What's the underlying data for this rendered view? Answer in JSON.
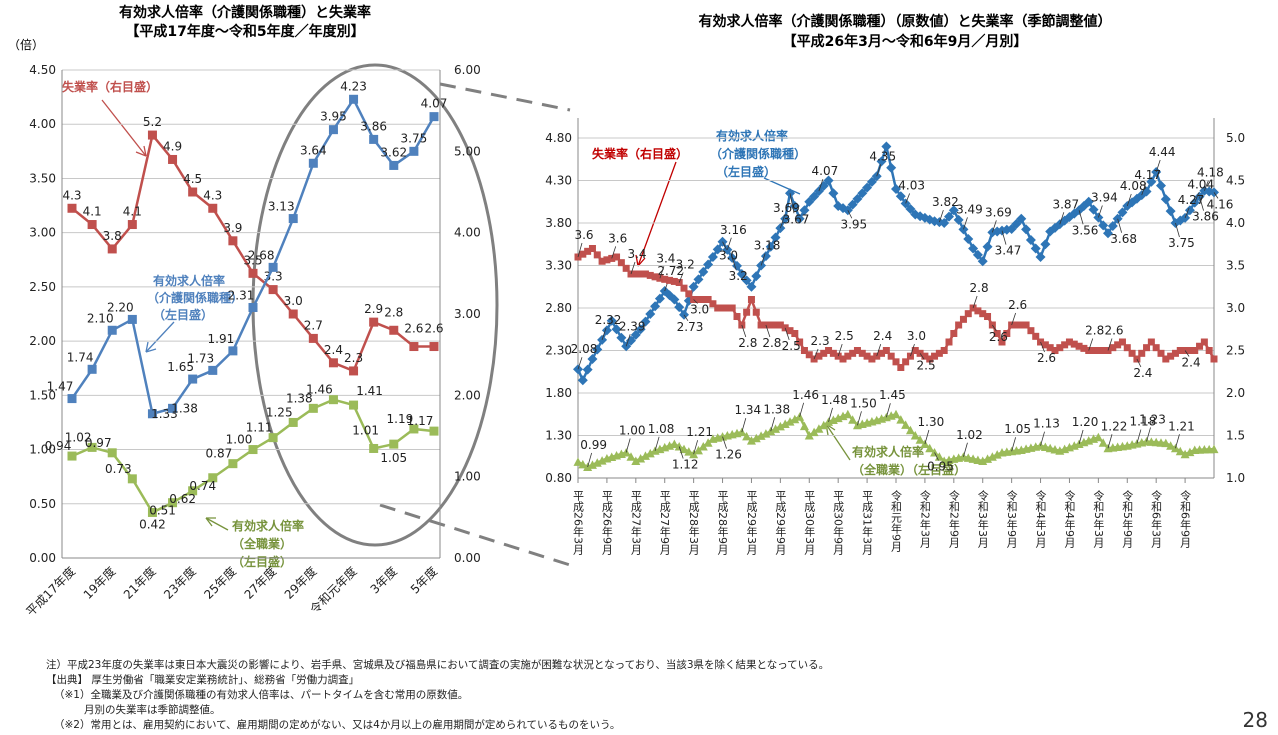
{
  "chart_data": [
    {
      "type": "line",
      "title": "有効求人倍率（介護関係職種）と失業率",
      "subtitle": "【平成17年度～令和5年度／年度別】",
      "left_unit": "（倍）",
      "left_ticks": [
        "0.00",
        "0.50",
        "1.00",
        "1.50",
        "2.00",
        "2.50",
        "3.00",
        "3.50",
        "4.00",
        "4.50"
      ],
      "right_ticks": [
        "0.00",
        "1.00",
        "2.00",
        "3.00",
        "4.00",
        "5.00",
        "6.00"
      ],
      "ylim_left": [
        0,
        4.5
      ],
      "ylim_right": [
        0,
        6
      ],
      "x_tick_labels": [
        "平成17年度",
        "19年度",
        "21年度",
        "23年度",
        "25年度",
        "27年度",
        "29年度",
        "令和元年度",
        "3年度",
        "5年度"
      ],
      "grid": true,
      "series": [
        {
          "name": "失業率（右目盛）",
          "axis": "right",
          "color": "#c0504d",
          "values": [
            4.3,
            4.1,
            3.8,
            4.1,
            5.2,
            4.9,
            4.5,
            4.3,
            3.9,
            3.5,
            3.3,
            3.0,
            2.7,
            2.4,
            2.3,
            2.9,
            2.8,
            2.6,
            2.6
          ],
          "labels": [
            "4.3",
            "4.1",
            "3.8",
            "4.1",
            "5.2",
            "4.9",
            "4.5",
            "4.3",
            "3.9",
            "3.5",
            "3.3",
            "3.0",
            "2.7",
            "2.4",
            "2.3",
            "2.9",
            "2.8",
            "2.6",
            "2.6"
          ]
        },
        {
          "name": "有効求人倍率（介護関係職種）（左目盛）",
          "axis": "left",
          "color": "#4f81bd",
          "values": [
            1.47,
            1.74,
            2.1,
            2.2,
            1.33,
            1.38,
            1.65,
            1.73,
            1.91,
            2.31,
            2.68,
            3.13,
            3.64,
            3.95,
            4.23,
            3.86,
            3.62,
            3.75,
            4.07
          ],
          "labels": [
            "1.47",
            "1.74",
            "2.10",
            "2.20",
            "1.33",
            "1.38",
            "1.65",
            "1.73",
            "1.91",
            "2.31",
            "2.68",
            "3.13",
            "3.64",
            "3.95",
            "4.23",
            "3.86",
            "3.62",
            "3.75",
            "4.07"
          ]
        },
        {
          "name": "有効求人倍率（全職業）（左目盛）",
          "axis": "left",
          "color": "#9bbb59",
          "values": [
            0.94,
            1.02,
            0.97,
            0.73,
            0.42,
            0.51,
            0.62,
            0.74,
            0.87,
            1.0,
            1.11,
            1.25,
            1.38,
            1.46,
            1.41,
            1.01,
            1.05,
            1.19,
            1.17
          ],
          "labels": [
            "0.94",
            "1.02",
            "0.97",
            "0.73",
            "0.42",
            "0.51",
            "0.62",
            "0.74",
            "0.87",
            "1.00",
            "1.11",
            "1.25",
            "1.38",
            "1.46",
            "1.41",
            "1.01",
            "1.05",
            "1.19",
            "1.17"
          ]
        }
      ],
      "annotations": {
        "unemployment": "失業率（右目盛）",
        "care": [
          "有効求人倍率",
          "（介護関係職種）",
          "（左目盛）"
        ],
        "all": [
          "有効求人倍率",
          "（全職業）",
          "（左目盛）"
        ]
      }
    },
    {
      "type": "line",
      "title": "有効求人倍率（介護関係職種）（原数値）と失業率（季節調整値）",
      "subtitle": "【平成26年3月～令和6年9月／月別】",
      "left_ticks": [
        "0.80",
        "1.30",
        "1.80",
        "2.30",
        "2.80",
        "3.30",
        "3.80",
        "4.30",
        "4.80"
      ],
      "right_ticks": [
        "1.0",
        "1.5",
        "2.0",
        "2.5",
        "3.0",
        "3.5",
        "4.0",
        "4.5",
        "5.0"
      ],
      "ylim_left": [
        0.8,
        4.8
      ],
      "ylim_right": [
        1.0,
        5.0
      ],
      "x_tick_labels": [
        "平成26年3月",
        "平成26年9月",
        "平成27年3月",
        "平成27年9月",
        "平成28年3月",
        "平成28年9月",
        "平成29年3月",
        "平成29年9月",
        "平成30年3月",
        "平成30年9月",
        "平成31年3月",
        "令和元年9月",
        "令和2年3月",
        "令和2年9月",
        "令和3年3月",
        "令和3年9月",
        "令和4年3月",
        "令和4年9月",
        "令和5年3月",
        "令和5年9月",
        "令和6年3月",
        "令和6年9月"
      ],
      "grid": true,
      "series": [
        {
          "name": "有効求人倍率（介護関係職種）（左目盛）",
          "axis": "left",
          "color": "#2e75b6",
          "anchors": [
            [
              0,
              2.08
            ],
            [
              1,
              1.95
            ],
            [
              3,
              2.2
            ],
            [
              7,
              2.65
            ],
            [
              10,
              2.35
            ],
            [
              13,
              2.55
            ],
            [
              18,
              3.0
            ],
            [
              20,
              2.9
            ],
            [
              22,
              2.72
            ],
            [
              24,
              3.05
            ],
            [
              28,
              3.4
            ],
            [
              30,
              3.58
            ],
            [
              34,
              3.2
            ],
            [
              36,
              3.05
            ],
            [
              38,
              3.3
            ],
            [
              43,
              3.85
            ],
            [
              44,
              4.15
            ],
            [
              46,
              3.85
            ],
            [
              48,
              4.05
            ],
            [
              52,
              4.3
            ],
            [
              54,
              4.0
            ],
            [
              56,
              3.95
            ],
            [
              62,
              4.35
            ],
            [
              64,
              4.7
            ],
            [
              66,
              4.2
            ],
            [
              68,
              4.03
            ],
            [
              70,
              3.9
            ],
            [
              74,
              3.82
            ],
            [
              76,
              3.8
            ],
            [
              78,
              3.95
            ],
            [
              82,
              3.5
            ],
            [
              84,
              3.35
            ],
            [
              86,
              3.69
            ],
            [
              90,
              3.73
            ],
            [
              92,
              3.85
            ],
            [
              94,
              3.6
            ],
            [
              96,
              3.4
            ],
            [
              98,
              3.7
            ],
            [
              102,
              3.87
            ],
            [
              104,
              3.95
            ],
            [
              106,
              4.05
            ],
            [
              110,
              3.68
            ],
            [
              112,
              3.85
            ],
            [
              114,
              4.0
            ],
            [
              118,
              4.17
            ],
            [
              120,
              4.4
            ],
            [
              122,
              4.08
            ],
            [
              124,
              3.8
            ],
            [
              126,
              3.86
            ],
            [
              128,
              4.04
            ],
            [
              130,
              4.18
            ],
            [
              132,
              4.16
            ]
          ],
          "labels": [
            "2.08",
            "2.32",
            "2.39",
            "2.72",
            "2.73",
            "3.0",
            "3.16",
            "3.2",
            "3.18",
            "3.69",
            "3.67",
            "4.07",
            "3.95",
            "4.35",
            "4.03",
            "3.82",
            "3.49",
            "3.69",
            "3.47",
            "3.87",
            "3.56",
            "3.94",
            "3.68",
            "4.08",
            "4.17",
            "4.44",
            "3.75",
            "4.27",
            "4.04",
            "3.86",
            "4.18",
            "4.16"
          ]
        },
        {
          "name": "失業率（右目盛）",
          "axis": "right",
          "color": "#c0504d",
          "anchors": [
            [
              0,
              3.6
            ],
            [
              3,
              3.7
            ],
            [
              5,
              3.55
            ],
            [
              8,
              3.6
            ],
            [
              11,
              3.4
            ],
            [
              14,
              3.4
            ],
            [
              17,
              3.35
            ],
            [
              21,
              3.3
            ],
            [
              24,
              3.1
            ],
            [
              27,
              3.1
            ],
            [
              29,
              3.0
            ],
            [
              32,
              3.0
            ],
            [
              34,
              2.8
            ],
            [
              36,
              3.1
            ],
            [
              38,
              2.8
            ],
            [
              42,
              2.8
            ],
            [
              45,
              2.7
            ],
            [
              47,
              2.5
            ],
            [
              49,
              2.4
            ],
            [
              52,
              2.5
            ],
            [
              55,
              2.4
            ],
            [
              58,
              2.5
            ],
            [
              61,
              2.4
            ],
            [
              64,
              2.5
            ],
            [
              67,
              2.3
            ],
            [
              70,
              2.5
            ],
            [
              73,
              2.4
            ],
            [
              76,
              2.5
            ],
            [
              79,
              2.8
            ],
            [
              82,
              3.0
            ],
            [
              85,
              2.9
            ],
            [
              88,
              2.6
            ],
            [
              90,
              2.8
            ],
            [
              93,
              2.8
            ],
            [
              96,
              2.6
            ],
            [
              99,
              2.5
            ],
            [
              102,
              2.6
            ],
            [
              106,
              2.5
            ],
            [
              110,
              2.5
            ],
            [
              113,
              2.6
            ],
            [
              116,
              2.4
            ],
            [
              119,
              2.6
            ],
            [
              122,
              2.4
            ],
            [
              125,
              2.5
            ],
            [
              128,
              2.5
            ],
            [
              130,
              2.6
            ],
            [
              132,
              2.4
            ]
          ],
          "labels": [
            "3.6",
            "3.6",
            "3.4",
            "3.4",
            "3.2",
            "3.0",
            "2.8",
            "2.8",
            "2.5",
            "2.3",
            "2.5",
            "2.4",
            "3.0",
            "2.5",
            "2.8",
            "2.6",
            "2.6",
            "2.6",
            "2.8",
            "2.6",
            "2.4",
            "2.4"
          ]
        },
        {
          "name": "有効求人倍率（全職業）（左目盛）",
          "axis": "left",
          "color": "#9bbb59",
          "anchors": [
            [
              0,
              0.99
            ],
            [
              2,
              0.93
            ],
            [
              6,
              1.03
            ],
            [
              10,
              1.1
            ],
            [
              12,
              1.0
            ],
            [
              16,
              1.12
            ],
            [
              20,
              1.2
            ],
            [
              24,
              1.08
            ],
            [
              28,
              1.26
            ],
            [
              34,
              1.34
            ],
            [
              36,
              1.24
            ],
            [
              40,
              1.35
            ],
            [
              46,
              1.52
            ],
            [
              48,
              1.3
            ],
            [
              52,
              1.46
            ],
            [
              56,
              1.55
            ],
            [
              58,
              1.42
            ],
            [
              62,
              1.48
            ],
            [
              66,
              1.55
            ],
            [
              70,
              1.3
            ],
            [
              72,
              1.2
            ],
            [
              74,
              1.1
            ],
            [
              76,
              1.0
            ],
            [
              80,
              1.05
            ],
            [
              84,
              1.0
            ],
            [
              88,
              1.1
            ],
            [
              92,
              1.13
            ],
            [
              96,
              1.18
            ],
            [
              100,
              1.12
            ],
            [
              104,
              1.2
            ],
            [
              108,
              1.28
            ],
            [
              110,
              1.15
            ],
            [
              114,
              1.18
            ],
            [
              118,
              1.23
            ],
            [
              122,
              1.21
            ],
            [
              124,
              1.15
            ],
            [
              126,
              1.08
            ],
            [
              128,
              1.13
            ],
            [
              132,
              1.14
            ]
          ],
          "labels": [
            "0.99",
            "1.00",
            "1.08",
            "1.12",
            "1.21",
            "1.26",
            "1.34",
            "1.38",
            "1.46",
            "1.48",
            "1.50",
            "1.45",
            "1.30",
            "0.95",
            "1.02",
            "1.05",
            "1.13",
            "1.20",
            "1.22",
            "1.18",
            "1.23",
            "1.21"
          ]
        }
      ],
      "annotations": {
        "unemployment": "失業率（右目盛）",
        "care": [
          "有効求人倍率",
          "（介護関係職種）",
          "（左目盛）"
        ],
        "all": [
          "有効求人倍率",
          "（全職業）（左目盛）"
        ]
      }
    }
  ],
  "notes": [
    "注）平成23年度の失業率は東日本大震災の影響により、岩手県、宮城県及び福島県において調査の実施が困難な状況となっており、当該3県を除く結果となっている。",
    "【出典】 厚生労働省「職業安定業務統計」、総務省「労働力調査」",
    "（※1）全職業及び介護関係職種の有効求人倍率は、パートタイムを含む常用の原数値。",
    "月別の失業率は季節調整値。",
    "（※2）常用とは、雇用契約において、雇用期間の定めがない、又は4か月以上の雇用期間が定められているものをいう。"
  ],
  "page_number": "28"
}
